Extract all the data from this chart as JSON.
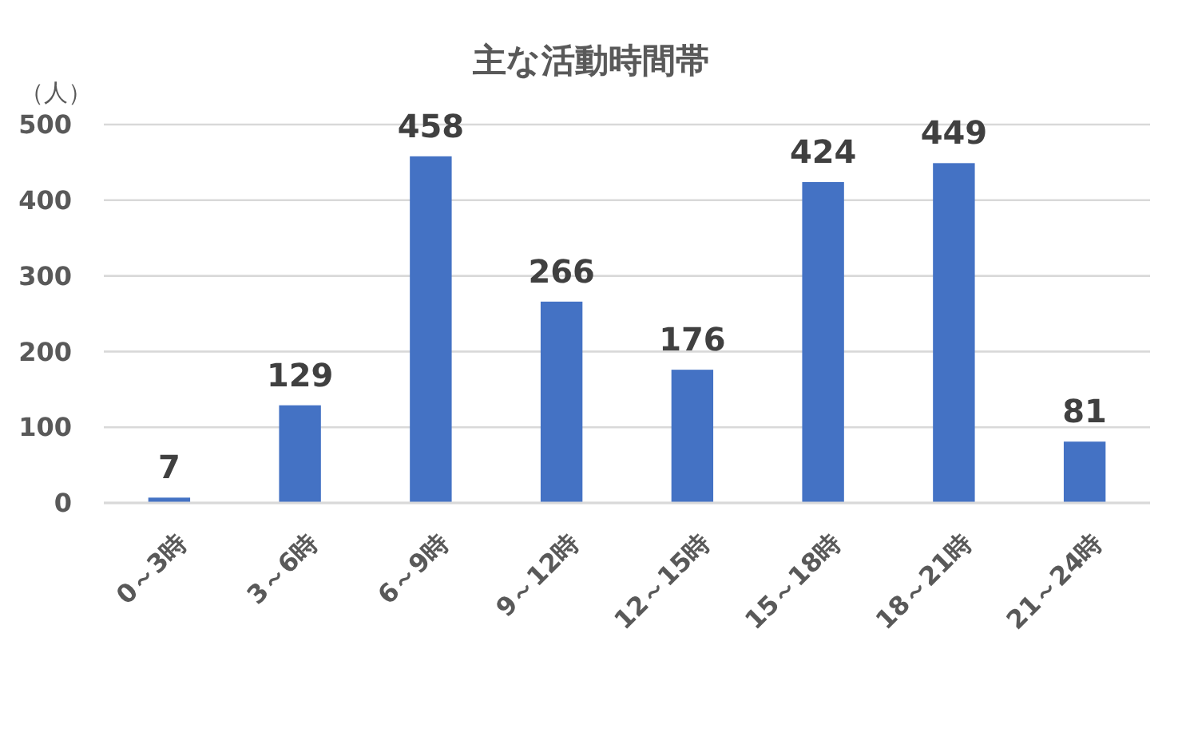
{
  "chart_data": {
    "type": "bar",
    "title": "主な活動時間帯",
    "ylabel": "（人）",
    "categories": [
      "0～3時",
      "3～6時",
      "6～9時",
      "9～12時",
      "12～15時",
      "15～18時",
      "18～21時",
      "21～24時"
    ],
    "values": [
      7,
      129,
      458,
      266,
      176,
      424,
      449,
      81
    ],
    "color": "#4472c4",
    "ylim": [
      0,
      500
    ],
    "yticks": [
      0,
      100,
      200,
      300,
      400,
      500
    ],
    "grid": "y",
    "data_labels": true
  }
}
